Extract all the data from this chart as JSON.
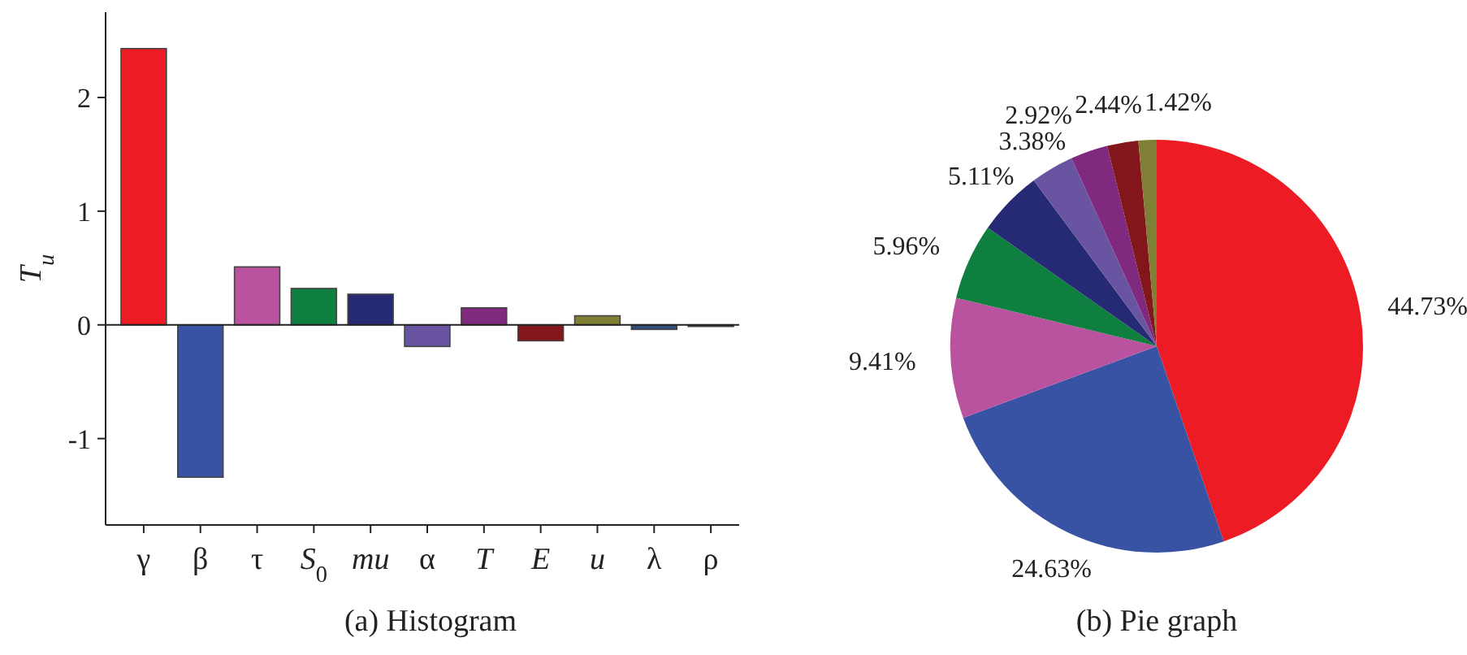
{
  "chart_data": [
    {
      "type": "bar",
      "title": "(a) Histogram",
      "ylabel": "T$_{u}$",
      "categories": [
        "γ",
        "β",
        "τ",
        "S$_{0}$",
        "mu",
        "α",
        "T",
        "E",
        "u",
        "λ",
        "ρ"
      ],
      "values": [
        2.43,
        -1.34,
        0.51,
        0.32,
        0.27,
        -0.19,
        0.15,
        -0.14,
        0.08,
        -0.04,
        -0.01
      ],
      "colors": [
        "#ed1c24",
        "#3953a4",
        "#b9529f",
        "#0f7f40",
        "#262a74",
        "#6954a2",
        "#7f2a7f",
        "#83161a",
        "#7f7f35",
        "#2e4d7d",
        "#333333"
      ],
      "ylim": [
        -1.76,
        2.75
      ],
      "yticks": [
        -1,
        0,
        1,
        2
      ],
      "ref_lines": [
        {
          "axis": "y",
          "value": 0
        }
      ],
      "grid": false
    },
    {
      "type": "pie",
      "title": "(b) Pie graph",
      "categories": [
        null,
        null,
        null,
        null,
        null,
        null,
        null,
        null,
        null
      ],
      "values": [
        44.73,
        24.63,
        9.41,
        5.96,
        5.11,
        3.38,
        2.92,
        2.44,
        1.42
      ],
      "value_labels": [
        "44.73%",
        "24.63%",
        "9.41%",
        "5.96%",
        "5.11%",
        "3.38%",
        "2.92%",
        "2.44%",
        "1.42%"
      ],
      "colors": [
        "#ed1c24",
        "#3953a4",
        "#b9529f",
        "#0f7f40",
        "#262a74",
        "#6954a2",
        "#7f2a7f",
        "#83161a",
        "#7f7f35"
      ]
    }
  ]
}
